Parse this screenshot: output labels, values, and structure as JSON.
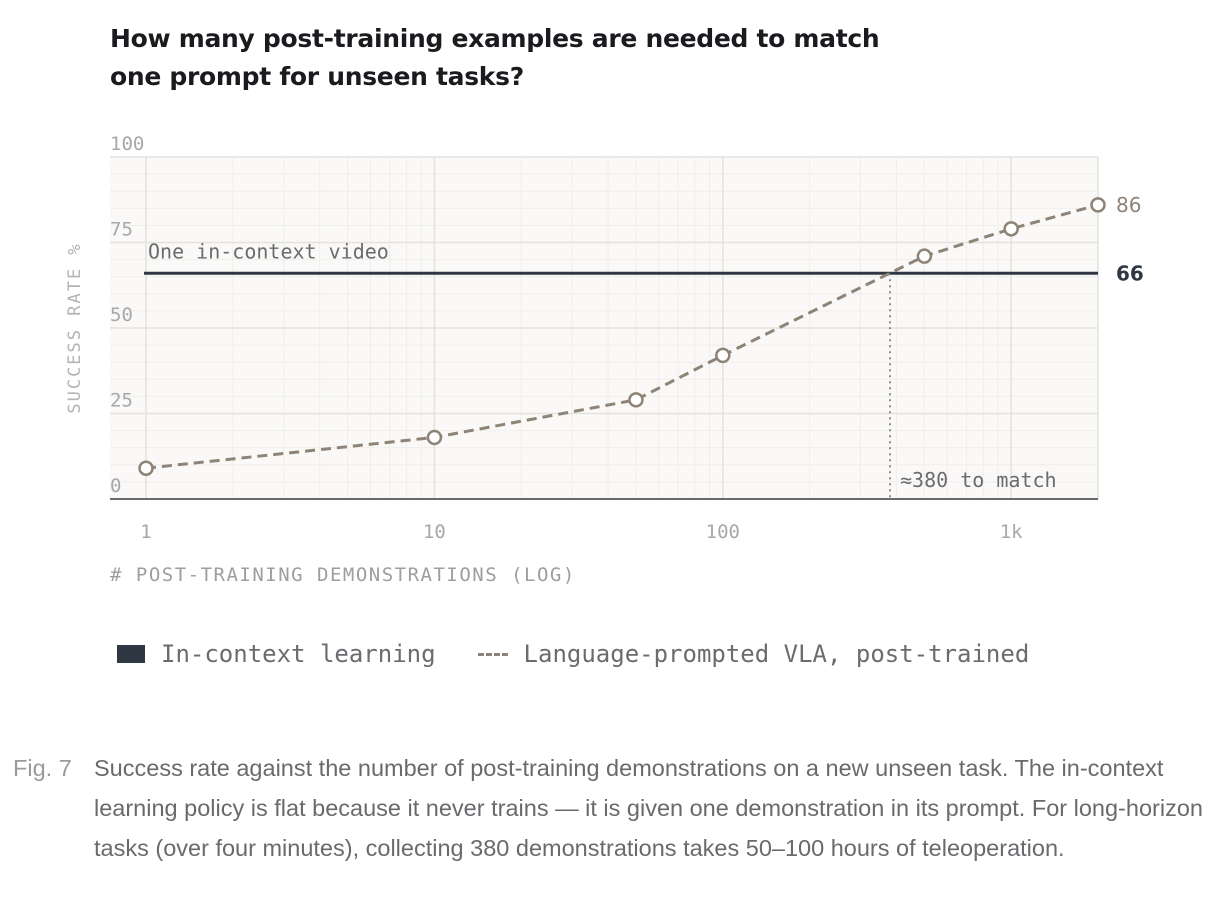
{
  "chart_data": {
    "type": "line",
    "title": "How many post-training examples are needed to match one prompt for unseen tasks?",
    "xlabel": "# POST-TRAINING DEMONSTRATIONS (LOG)",
    "ylabel": "SUCCESS RATE %",
    "xscale": "log",
    "xlim": [
      0.75,
      2000
    ],
    "ylim": [
      0,
      100
    ],
    "xticks": [
      {
        "value": 1,
        "label": "1"
      },
      {
        "value": 10,
        "label": "10"
      },
      {
        "value": 100,
        "label": "100"
      },
      {
        "value": 1000,
        "label": "1k"
      }
    ],
    "yticks": [
      {
        "value": 0,
        "label": "0"
      },
      {
        "value": 25,
        "label": "25"
      },
      {
        "value": 50,
        "label": "50"
      },
      {
        "value": 75,
        "label": "75"
      },
      {
        "value": 100,
        "label": "100"
      }
    ],
    "grid": true,
    "legend_position": "bottom-left",
    "series": [
      {
        "name": "In-context learning",
        "style": "solid",
        "color": "#2f3743",
        "x": [
          1,
          2000
        ],
        "y": [
          66,
          66
        ],
        "annotation": "One in-context video",
        "end_label": "66"
      },
      {
        "name": "Language-prompted VLA, post-trained",
        "style": "dashed",
        "color": "#8e8377",
        "markers": true,
        "x": [
          1,
          10,
          50,
          100,
          500,
          1000,
          2000
        ],
        "y": [
          9,
          18,
          29,
          42,
          71,
          79,
          86
        ],
        "end_label": "86"
      }
    ],
    "annotations": [
      {
        "type": "vline",
        "x": 380,
        "label": "≈380 to match"
      }
    ]
  },
  "caption": {
    "label": "Fig. 7",
    "text": "Success rate against the number of post-training demonstrations on a new unseen task. The in-context learning policy is flat because it never trains — it is given one demonstration in its prompt. For long-horizon tasks (over four minutes), collecting 380 demonstrations takes 50–100 hours of teleoperation."
  }
}
